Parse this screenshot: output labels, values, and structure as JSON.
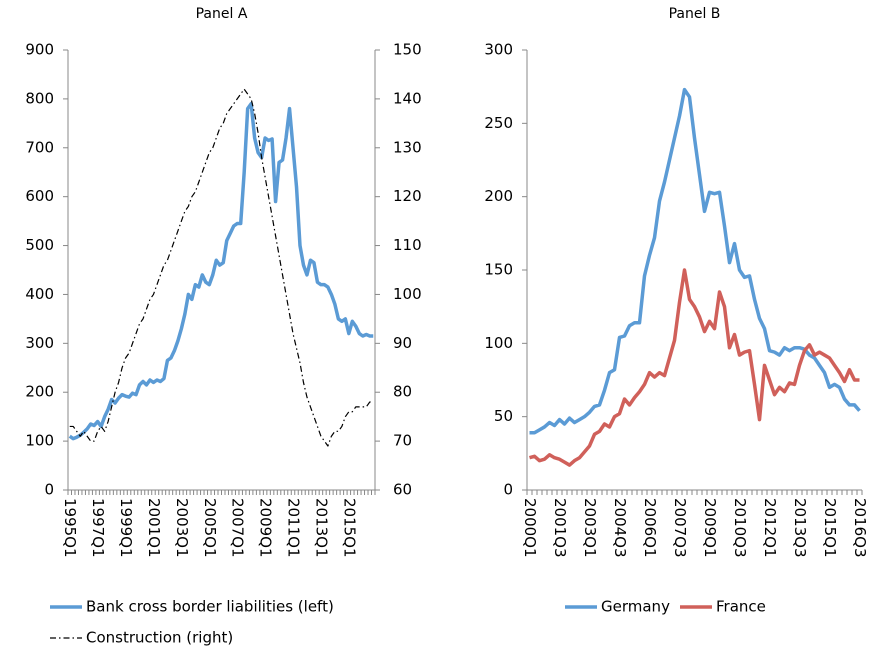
{
  "chart_data": [
    {
      "type": "line",
      "title": "Panel A",
      "categories": [
        "1995Q1",
        null,
        null,
        null,
        null,
        null,
        null,
        null,
        "1997Q1",
        null,
        null,
        null,
        null,
        null,
        null,
        null,
        "1999Q1",
        null,
        null,
        null,
        null,
        null,
        null,
        null,
        "2001Q1",
        null,
        null,
        null,
        null,
        null,
        null,
        null,
        "2003Q1",
        null,
        null,
        null,
        null,
        null,
        null,
        null,
        "2005Q1",
        null,
        null,
        null,
        null,
        null,
        null,
        null,
        "2007Q1",
        null,
        null,
        null,
        null,
        null,
        null,
        null,
        "2009Q1",
        null,
        null,
        null,
        null,
        null,
        null,
        null,
        "2011Q1",
        null,
        null,
        null,
        null,
        null,
        null,
        null,
        "2013Q1",
        null,
        null,
        null,
        null,
        null,
        null,
        null,
        "2015Q1",
        null,
        null,
        null,
        null,
        null,
        null,
        null
      ],
      "series": [
        {
          "name": "Bank cross border liabilities (left)",
          "color": "#5b9bd5",
          "axis": "y",
          "line_style": "solid",
          "values": [
            110,
            105,
            108,
            112,
            118,
            125,
            135,
            132,
            140,
            130,
            150,
            165,
            185,
            178,
            188,
            195,
            192,
            190,
            198,
            195,
            215,
            222,
            215,
            225,
            220,
            225,
            222,
            228,
            265,
            270,
            285,
            305,
            330,
            360,
            400,
            390,
            420,
            415,
            440,
            425,
            420,
            440,
            470,
            460,
            465,
            510,
            525,
            540,
            545,
            545,
            650,
            780,
            790,
            720,
            690,
            680,
            720,
            715,
            718,
            590,
            670,
            675,
            720,
            780,
            700,
            620,
            500,
            460,
            440,
            470,
            465,
            425,
            420,
            420,
            415,
            400,
            380,
            350,
            345,
            350,
            320,
            345,
            335,
            320,
            315,
            318,
            315,
            315
          ]
        },
        {
          "name": "Construction (right)",
          "color": "#000000",
          "axis": "y2",
          "line_style": "dashdot",
          "values": [
            73,
            73,
            72,
            71,
            72,
            71,
            70,
            70,
            72,
            73,
            72,
            74,
            77,
            80,
            82,
            85,
            87,
            88,
            90,
            92,
            94,
            95,
            97,
            99,
            100,
            102,
            104,
            106,
            107,
            109,
            111,
            113,
            115,
            117,
            118,
            120,
            121,
            123,
            125,
            127,
            129,
            130,
            132,
            134,
            135,
            137,
            138,
            139,
            140,
            141,
            142,
            141,
            140,
            137,
            133,
            128,
            124,
            120,
            116,
            112,
            108,
            104,
            100,
            96,
            92,
            89,
            86,
            82,
            79,
            77,
            75,
            73,
            71,
            70,
            69,
            71,
            72,
            72,
            73,
            75,
            76,
            76,
            77,
            77,
            77,
            77,
            78,
            78
          ]
        }
      ],
      "ylim": [
        0,
        900
      ],
      "yticks": [
        0,
        100,
        200,
        300,
        400,
        500,
        600,
        700,
        800,
        900
      ],
      "y2lim": [
        60,
        150
      ],
      "y2ticks": [
        60,
        70,
        80,
        90,
        100,
        110,
        120,
        130,
        140,
        150
      ],
      "grid": false,
      "legend": "bottom"
    },
    {
      "type": "line",
      "title": "Panel B",
      "categories": [
        "2000Q1",
        null,
        null,
        null,
        null,
        null,
        "2001Q3",
        null,
        null,
        null,
        null,
        null,
        "2003Q1",
        null,
        null,
        null,
        null,
        null,
        "2004Q3",
        null,
        null,
        null,
        null,
        null,
        "2006Q1",
        null,
        null,
        null,
        null,
        null,
        "2007Q3",
        null,
        null,
        null,
        null,
        null,
        "2009Q1",
        null,
        null,
        null,
        null,
        null,
        "2010Q3",
        null,
        null,
        null,
        null,
        null,
        "2012Q1",
        null,
        null,
        null,
        null,
        null,
        "2013Q3",
        null,
        null,
        null,
        null,
        null,
        "2015Q1",
        null,
        null,
        null,
        null,
        null,
        "2016Q3"
      ],
      "series": [
        {
          "name": "Germany",
          "color": "#5b9bd5",
          "axis": "y",
          "line_style": "solid",
          "values": [
            39,
            39,
            41,
            43,
            46,
            44,
            48,
            45,
            49,
            46,
            48,
            50,
            53,
            57,
            58,
            68,
            80,
            82,
            104,
            105,
            112,
            114,
            114,
            146,
            160,
            172,
            197,
            210,
            225,
            240,
            255,
            273,
            268,
            240,
            215,
            190,
            203,
            202,
            203,
            180,
            155,
            168,
            150,
            145,
            146,
            130,
            117,
            110,
            95,
            94,
            92,
            97,
            95,
            97,
            97,
            96,
            92,
            90,
            85,
            80,
            70,
            72,
            70,
            62,
            58,
            58,
            54
          ]
        },
        {
          "name": "France",
          "color": "#d0605a",
          "axis": "y",
          "line_style": "solid",
          "values": [
            22,
            23,
            20,
            21,
            24,
            22,
            21,
            19,
            17,
            20,
            22,
            26,
            30,
            38,
            40,
            45,
            43,
            50,
            52,
            62,
            58,
            63,
            67,
            72,
            80,
            77,
            80,
            78,
            90,
            102,
            128,
            150,
            130,
            125,
            118,
            108,
            115,
            110,
            135,
            125,
            97,
            106,
            92,
            94,
            95,
            72,
            48,
            85,
            75,
            65,
            70,
            67,
            73,
            72,
            85,
            95,
            99,
            92,
            94,
            92,
            90,
            85,
            80,
            74,
            82,
            75,
            75
          ]
        }
      ],
      "ylim": [
        0,
        300
      ],
      "yticks": [
        0,
        50,
        100,
        150,
        200,
        250,
        300
      ],
      "grid": false,
      "legend": "bottom"
    }
  ]
}
